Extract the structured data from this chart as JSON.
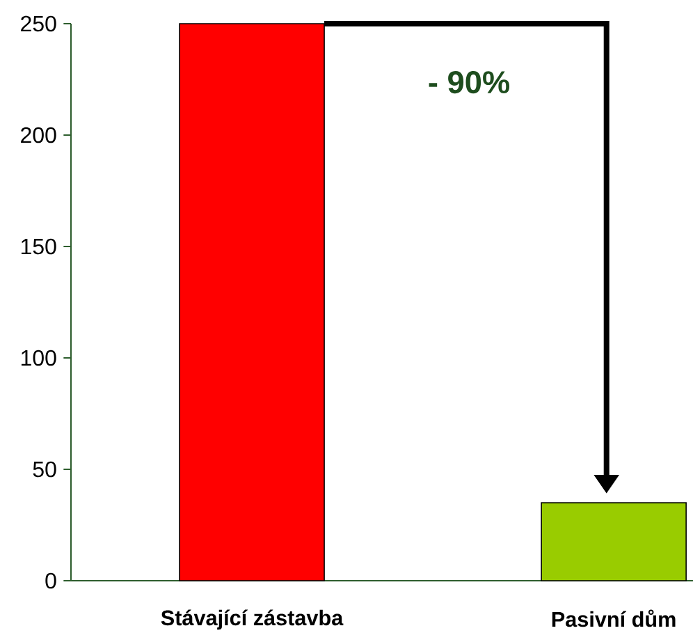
{
  "chart_data": {
    "type": "bar",
    "categories": [
      "Stávající zástavba",
      "Pasivní dům"
    ],
    "values": [
      250,
      35
    ],
    "colors": [
      "#ff0000",
      "#99cc00"
    ],
    "ylim": [
      0,
      250
    ],
    "yticks": [
      0,
      50,
      100,
      150,
      200,
      250
    ],
    "grid": false,
    "annotations": [
      "- 90%"
    ]
  }
}
